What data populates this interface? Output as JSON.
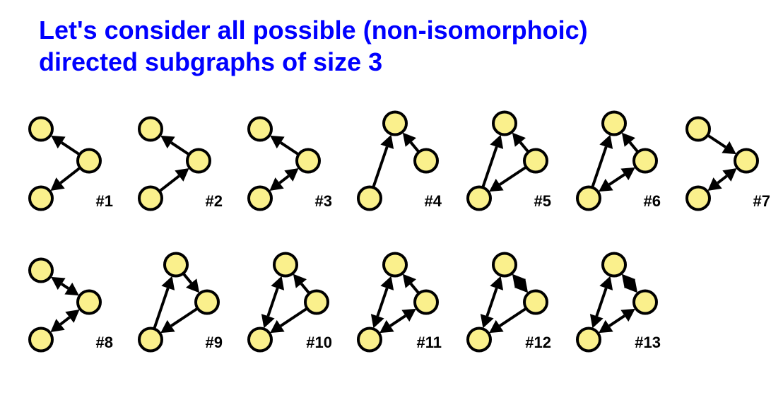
{
  "title_line1": "Let's consider all possible (non-isomorphoic)",
  "title_line2": "directed subgraphs of size 3",
  "node_fill": "#faf08c",
  "node_stroke": "#000000",
  "node_stroke_width": 4,
  "node_radius": 16,
  "edge_color": "#000000",
  "edge_width": 4,
  "arrow_size": 18,
  "label_fontsize": 22,
  "positions": {
    "open": {
      "A": [
        28,
        30
      ],
      "B": [
        96,
        75
      ],
      "C": [
        28,
        128
      ]
    },
    "closed": {
      "A": [
        64,
        22
      ],
      "B": [
        108,
        75
      ],
      "C": [
        28,
        128
      ]
    }
  },
  "graphs": [
    {
      "id": 1,
      "label": "#1",
      "layout": "open",
      "edges": [
        [
          "B",
          "A",
          false
        ],
        [
          "B",
          "C",
          false
        ]
      ]
    },
    {
      "id": 2,
      "label": "#2",
      "layout": "open",
      "edges": [
        [
          "B",
          "A",
          false
        ],
        [
          "C",
          "B",
          false
        ]
      ]
    },
    {
      "id": 3,
      "label": "#3",
      "layout": "open",
      "edges": [
        [
          "B",
          "A",
          false
        ],
        [
          "B",
          "C",
          true
        ]
      ]
    },
    {
      "id": 4,
      "label": "#4",
      "layout": "closed",
      "edges": [
        [
          "C",
          "A",
          false
        ],
        [
          "B",
          "A",
          false
        ]
      ]
    },
    {
      "id": 5,
      "label": "#5",
      "layout": "closed",
      "edges": [
        [
          "C",
          "A",
          false
        ],
        [
          "B",
          "A",
          false
        ],
        [
          "B",
          "C",
          false
        ]
      ]
    },
    {
      "id": 6,
      "label": "#6",
      "layout": "closed",
      "edges": [
        [
          "C",
          "A",
          false
        ],
        [
          "B",
          "A",
          false
        ],
        [
          "B",
          "C",
          true
        ]
      ]
    },
    {
      "id": 7,
      "label": "#7",
      "layout": "open",
      "edges": [
        [
          "A",
          "B",
          false
        ],
        [
          "B",
          "C",
          true
        ]
      ]
    },
    {
      "id": 8,
      "label": "#8",
      "layout": "open",
      "edges": [
        [
          "B",
          "A",
          true
        ],
        [
          "B",
          "C",
          true
        ]
      ]
    },
    {
      "id": 9,
      "label": "#9",
      "layout": "closed",
      "edges": [
        [
          "C",
          "A",
          false
        ],
        [
          "A",
          "B",
          false
        ],
        [
          "B",
          "C",
          false
        ]
      ]
    },
    {
      "id": 10,
      "label": "#10",
      "layout": "closed",
      "edges": [
        [
          "C",
          "A",
          true
        ],
        [
          "B",
          "A",
          false
        ],
        [
          "B",
          "C",
          false
        ]
      ]
    },
    {
      "id": 11,
      "label": "#11",
      "layout": "closed",
      "edges": [
        [
          "C",
          "A",
          true
        ],
        [
          "B",
          "A",
          false
        ],
        [
          "B",
          "C",
          true
        ]
      ]
    },
    {
      "id": 12,
      "label": "#12",
      "layout": "closed",
      "edges": [
        [
          "C",
          "A",
          true
        ],
        [
          "B",
          "A",
          true
        ],
        [
          "B",
          "C",
          false
        ]
      ]
    },
    {
      "id": 13,
      "label": "#13",
      "layout": "closed",
      "edges": [
        [
          "C",
          "A",
          true
        ],
        [
          "B",
          "A",
          true
        ],
        [
          "B",
          "C",
          true
        ]
      ]
    }
  ],
  "rows": [
    [
      1,
      2,
      3,
      4,
      5,
      6,
      7
    ],
    [
      8,
      9,
      10,
      11,
      12,
      13
    ]
  ]
}
